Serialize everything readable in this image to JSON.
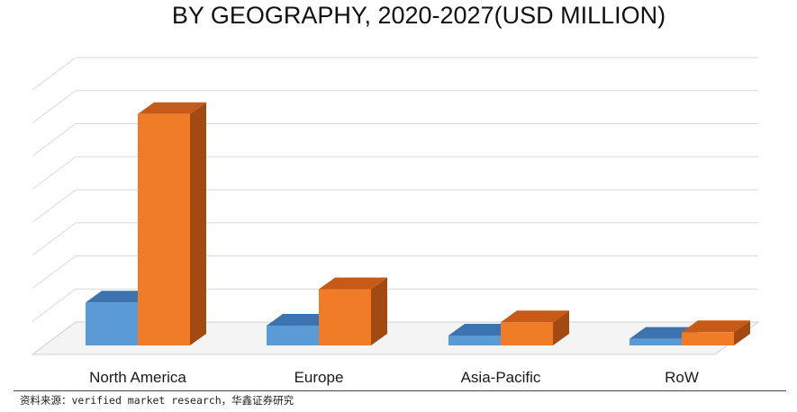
{
  "chart_data": {
    "type": "bar",
    "title": "BY GEOGRAPHY, 2020-2027(USD MILLION)",
    "categories": [
      "North America",
      "Europe",
      "Asia-Pacific",
      "RoW"
    ],
    "series": [
      {
        "values": [
          13,
          6,
          3,
          2
        ]
      },
      {
        "values": [
          70,
          17,
          7,
          4
        ]
      }
    ],
    "ylim": [
      0,
      80
    ],
    "grid": true,
    "colors": {
      "series0_front": "#5b9bd5",
      "series0_top": "#3a73ad",
      "series0_side": "#2f5f94",
      "series1_front": "#f07c28",
      "series1_top": "#c75a16",
      "series1_side": "#a24a12",
      "grid": "#d9d9d9",
      "floor": "#d0d0d0"
    }
  },
  "source": "资料来源：verified market research，华鑫证券研究"
}
